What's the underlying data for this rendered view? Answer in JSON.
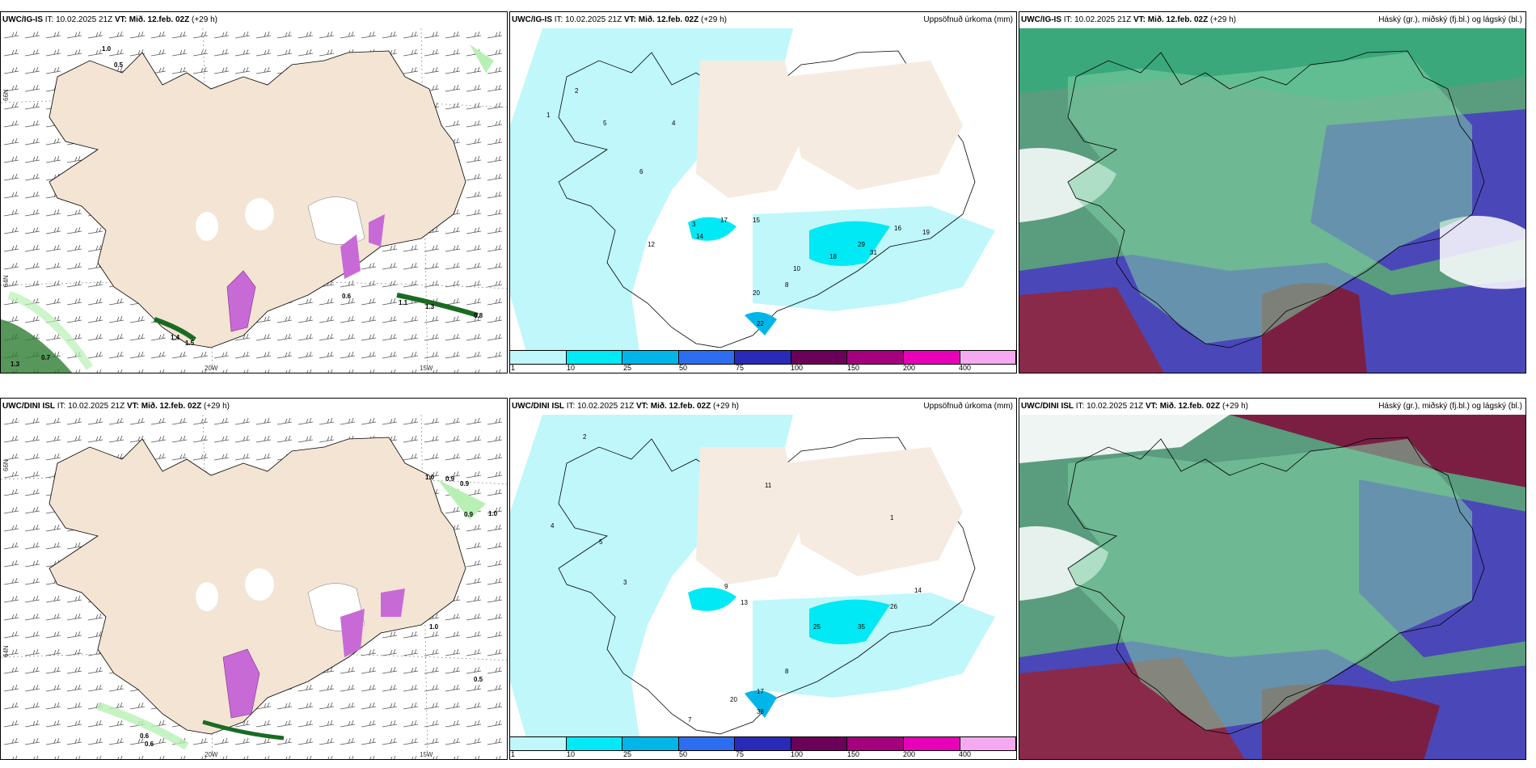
{
  "panels": [
    {
      "model": "UWC/IG-IS",
      "it": "IT: 10.02.2025 21Z",
      "vt_label": "VT:",
      "vt": "Mið. 12.feb. 02Z",
      "lead": "(+29 h)",
      "right": ""
    },
    {
      "model": "UWC/IG-IS",
      "it": "IT: 10.02.2025 21Z",
      "vt_label": "VT:",
      "vt": "Mið. 12.feb. 02Z",
      "lead": "(+29 h)",
      "right": "Uppsöfnuð úrkoma (mm)"
    },
    {
      "model": "UWC/IG-IS",
      "it": "IT: 10.02.2025 21Z",
      "vt_label": "VT:",
      "vt": "Mið. 12.feb. 02Z",
      "lead": "(+29 h)",
      "right": "Háský (gr.), miðský (fj.bl.) og lágský (bl.)"
    },
    {
      "model": "UWC/DINI ISL",
      "it": "IT: 10.02.2025 21Z",
      "vt_label": "VT:",
      "vt": "Mið. 12.feb. 02Z",
      "lead": "(+29 h)",
      "right": ""
    },
    {
      "model": "UWC/DINI ISL",
      "it": "IT: 10.02.2025 21Z",
      "vt_label": "VT:",
      "vt": "Mið. 12.feb. 02Z",
      "lead": "(+29 h)",
      "right": "Uppsöfnuð úrkoma (mm)"
    },
    {
      "model": "UWC/DINI ISL",
      "it": "IT: 10.02.2025 21Z",
      "vt_label": "VT:",
      "vt": "Mið. 12.feb. 02Z",
      "lead": "(+29 h)",
      "right": "Háský (gr.), miðský (fj.bl.) og lágský (bl.)"
    }
  ],
  "axis_labels": {
    "lat66": "66N",
    "lat64": "64N",
    "lon20": "20W",
    "lon15": "15W"
  },
  "legend": {
    "ticks": [
      "1",
      "10",
      "25",
      "50",
      "75",
      "100",
      "150",
      "200",
      "400"
    ],
    "colors": [
      "#bff7fb",
      "#00e9f4",
      "#00b6e8",
      "#2d6df0",
      "#2a2ab8",
      "#6b0058",
      "#a4007e",
      "#e800b8",
      "#f5a9f0"
    ]
  },
  "wind_labels_top": [
    "1.0",
    "0.5",
    "1.1",
    "1.3",
    "0.8",
    "0.6",
    "1.4",
    "1.5",
    "1.3",
    "0.7"
  ],
  "wind_labels_bottom": [
    "1.0",
    "0.9",
    "0.9",
    "0.9",
    "1.0",
    "1.0",
    "0.5",
    "0.6",
    "0.6"
  ],
  "precip_labels_top": [
    "3",
    "5",
    "6",
    "12",
    "14",
    "17",
    "15",
    "20",
    "22",
    "16",
    "29",
    "31",
    "19",
    "18",
    "2",
    "1",
    "4",
    "8",
    "10"
  ],
  "precip_labels_bottom": [
    "4",
    "5",
    "11",
    "13",
    "9",
    "26",
    "35",
    "25",
    "17",
    "20",
    "38",
    "14",
    "2",
    "1",
    "3",
    "7",
    "8"
  ],
  "colors": {
    "land": "#f3e4d3",
    "precip_light": "#bff7fb",
    "precip_mid": "#00e9f4",
    "sea": "#ffffff"
  }
}
